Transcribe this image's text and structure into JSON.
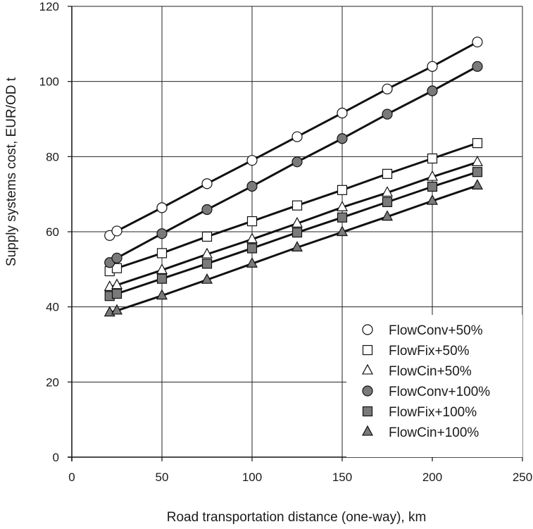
{
  "chart_data": {
    "type": "line",
    "title": "",
    "xlabel": "Road transportation distance (one-way), km",
    "ylabel": "Supply systems cost, EUR/OD t",
    "xlim": [
      0,
      250
    ],
    "ylim": [
      0,
      120
    ],
    "x_ticks": [
      0,
      50,
      100,
      150,
      200,
      250
    ],
    "y_ticks": [
      0,
      20,
      40,
      60,
      80,
      100,
      120
    ],
    "x_tick_labels": [
      "0",
      "50",
      "100",
      "150",
      "200",
      "250"
    ],
    "y_tick_labels": [
      "0",
      "20",
      "40",
      "60",
      "80",
      "100",
      "120"
    ],
    "grid": true,
    "legend_position": "bottom-right",
    "series": [
      {
        "name": "FlowConv+50%",
        "marker": "circle",
        "fill": "#ffffff",
        "x": [
          21,
          25,
          50,
          75,
          100,
          125,
          150,
          175,
          200,
          225
        ],
        "y": [
          59,
          60.2,
          66.4,
          72.8,
          79,
          85.3,
          91.6,
          98,
          104,
          110.5
        ]
      },
      {
        "name": "FlowFix+50%",
        "marker": "square",
        "fill": "#ffffff",
        "x": [
          21,
          25,
          50,
          75,
          100,
          125,
          150,
          175,
          200,
          225
        ],
        "y": [
          49.5,
          50.3,
          54.3,
          58.7,
          62.8,
          67,
          71.1,
          75.4,
          79.5,
          83.6
        ]
      },
      {
        "name": "FlowCin+50%",
        "marker": "triangle",
        "fill": "#ffffff",
        "x": [
          21,
          25,
          50,
          75,
          100,
          125,
          150,
          175,
          200,
          225
        ],
        "y": [
          45.3,
          45.8,
          49.8,
          54,
          58,
          62.2,
          66.5,
          70.4,
          74.6,
          78.5
        ]
      },
      {
        "name": "FlowConv+100%",
        "marker": "circle",
        "fill": "#7a7a7a",
        "x": [
          21,
          25,
          50,
          75,
          100,
          125,
          150,
          175,
          200,
          225
        ],
        "y": [
          51.8,
          53,
          59.5,
          65.9,
          72.1,
          78.6,
          84.8,
          91.3,
          97.5,
          104
        ]
      },
      {
        "name": "FlowFix+100%",
        "marker": "square",
        "fill": "#7a7a7a",
        "x": [
          21,
          25,
          50,
          75,
          100,
          125,
          150,
          175,
          200,
          225
        ],
        "y": [
          42.9,
          43.5,
          47.5,
          51.5,
          55.6,
          59.8,
          63.8,
          67.9,
          72,
          75.9
        ]
      },
      {
        "name": "FlowCin+100%",
        "marker": "triangle",
        "fill": "#7a7a7a",
        "x": [
          21,
          25,
          50,
          75,
          100,
          125,
          150,
          175,
          200,
          225
        ],
        "y": [
          38.5,
          39,
          43,
          47.2,
          51.5,
          55.8,
          59.9,
          64,
          68.2,
          72.3
        ]
      }
    ]
  }
}
